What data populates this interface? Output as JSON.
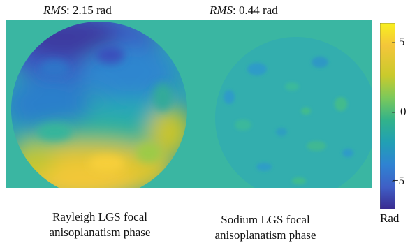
{
  "panels": [
    {
      "rms_var": "RMS",
      "rms_value": ": 2.15 rad",
      "caption_line1": "Rayleigh LGS focal",
      "caption_line2": "anisoplanatism phase"
    },
    {
      "rms_var": "RMS",
      "rms_value": ": 0.44 rad",
      "caption_line1": "Sodium LGS focal",
      "caption_line2": "anisoplanatism phase"
    }
  ],
  "colorbar": {
    "ticks": [
      "5",
      "0",
      "−5"
    ],
    "unit": "Rad",
    "colormap": [
      "#f9f01e",
      "#f4c63a",
      "#caca2c",
      "#7cc95a",
      "#32b38a",
      "#21a0b4",
      "#2f83d2",
      "#3f5fc6",
      "#3a2a8f"
    ]
  },
  "colors": {
    "background_map": "#3ab6a2"
  }
}
